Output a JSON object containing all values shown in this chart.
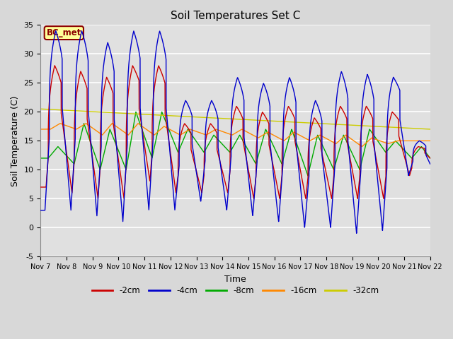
{
  "title": "Soil Temperatures Set C",
  "xlabel": "Time",
  "ylabel": "Soil Temperature (C)",
  "ylim": [
    -5,
    35
  ],
  "xlim": [
    0,
    360
  ],
  "plot_bg_color": "#e0e0e0",
  "fig_bg_color": "#d8d8d8",
  "grid_color": "white",
  "annotation_text": "BC_met",
  "annotation_bg": "#ffff99",
  "annotation_border": "#8B0000",
  "legend_entries": [
    "-2cm",
    "-4cm",
    "-8cm",
    "-16cm",
    "-32cm"
  ],
  "line_colors": [
    "#cc0000",
    "#0000cc",
    "#00aa00",
    "#ff8800",
    "#cccc00"
  ],
  "xtick_labels": [
    "Nov 7",
    "Nov 8",
    "Nov 9",
    "Nov 10",
    "Nov 11",
    "Nov 12",
    "Nov 13",
    "Nov 14",
    "Nov 15",
    "Nov 16",
    "Nov 17",
    "Nov 18",
    "Nov 19",
    "Nov 20",
    "Nov 21",
    "Nov 22"
  ],
  "xtick_positions": [
    0,
    24,
    48,
    72,
    96,
    120,
    144,
    168,
    192,
    216,
    240,
    264,
    288,
    312,
    336,
    360
  ],
  "ytick_labels": [
    "-5",
    "0",
    "5",
    "10",
    "15",
    "20",
    "25",
    "30",
    "35"
  ],
  "ytick_positions": [
    -5,
    0,
    5,
    10,
    15,
    20,
    25,
    30,
    35
  ]
}
